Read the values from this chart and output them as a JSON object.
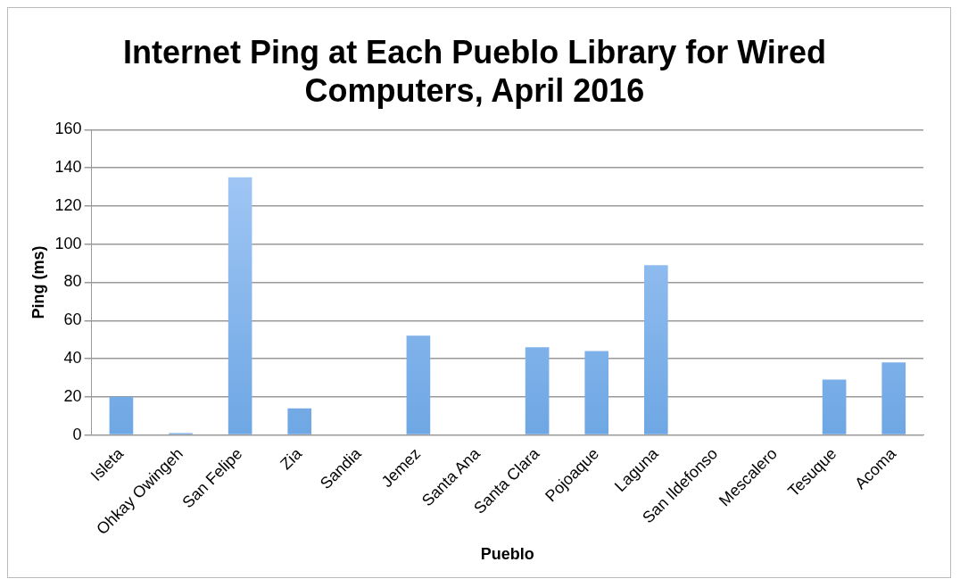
{
  "chart_data": {
    "type": "bar",
    "title": "Internet Ping at Each Pueblo Library for Wired Computers, April 2016",
    "xlabel": "Pueblo",
    "ylabel": "Ping (ms)",
    "categories": [
      "Isleta",
      "Ohkay Owingeh",
      "San Felipe",
      "Zia",
      "Sandia",
      "Jemez",
      "Santa Ana",
      "Santa Clara",
      "Pojoaque",
      "Laguna",
      "San Ildefonso",
      "Mescalero",
      "Tesuque",
      "Acoma"
    ],
    "values": [
      20,
      1,
      135,
      14,
      0,
      52,
      0,
      46,
      44,
      89,
      0,
      0,
      29,
      38
    ],
    "color": "#6ea7e4",
    "ylim": [
      0,
      160
    ],
    "yticks": [
      0,
      20,
      40,
      60,
      80,
      100,
      120,
      140,
      160
    ],
    "grid": "y",
    "legend": false
  }
}
